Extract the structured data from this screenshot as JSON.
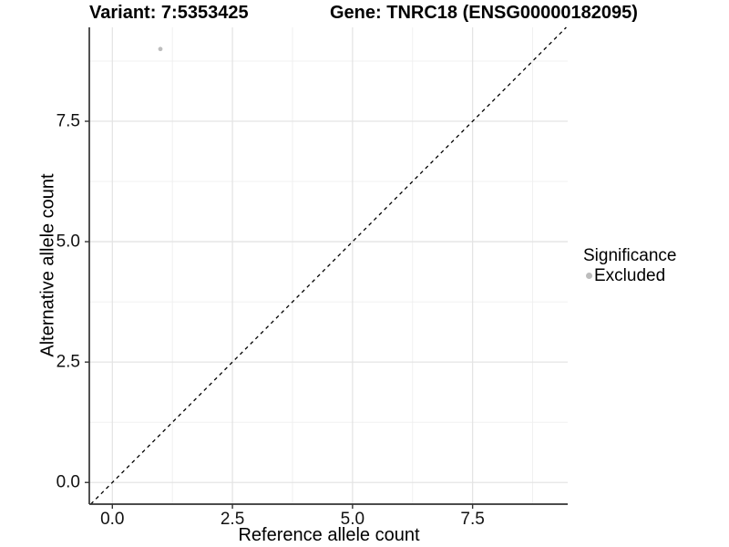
{
  "header": {
    "variant_title": "Variant: 7:5353425",
    "gene_title": "Gene: TNRC18 (ENSG00000182095)"
  },
  "chart_data": {
    "type": "scatter",
    "title": "Variant: 7:5353425   Gene: TNRC18 (ENSG00000182095)",
    "xlabel": "Reference allele count",
    "ylabel": "Alternative allele count",
    "xlim": [
      -0.48,
      9.48
    ],
    "ylim": [
      -0.45,
      9.45
    ],
    "x_breaks": [
      0,
      2.5,
      5,
      7.5
    ],
    "x_tick_labels": [
      "0.0",
      "2.5",
      "5.0",
      "7.5"
    ],
    "y_breaks": [
      0,
      2.5,
      5,
      7.5
    ],
    "y_tick_labels": [
      "0.0",
      "2.5",
      "5.0",
      "7.5"
    ],
    "x_minor_breaks": [
      1.25,
      3.75,
      6.25,
      8.75
    ],
    "y_minor_breaks": [
      1.25,
      3.75,
      6.25,
      8.75
    ],
    "grid": true,
    "series": [
      {
        "name": "Excluded",
        "color": "#bdbdbd",
        "points": [
          {
            "x": 1,
            "y": 9
          }
        ]
      }
    ],
    "reference_line": {
      "type": "identity",
      "style": "dashed",
      "color": "#000000"
    },
    "legend": {
      "title": "Significance",
      "position": "right",
      "items": [
        {
          "label": "Excluded",
          "color": "#bdbdbd"
        }
      ]
    },
    "palette": {
      "grid_major": "#e4e4e4",
      "grid_minor": "#f0f0f0",
      "axis_line": "#333333",
      "tick_text": "#111111"
    }
  }
}
